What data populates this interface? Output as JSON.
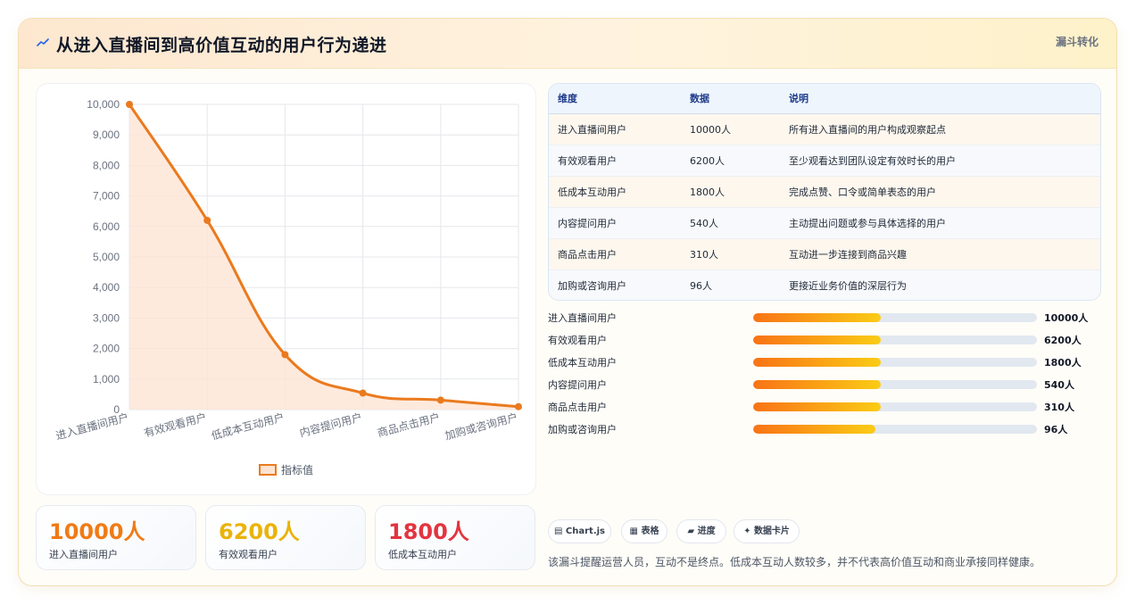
{
  "header": {
    "icon": "trend-line-icon",
    "title": "从进入直播间到高价值互动的用户行为递进",
    "tag": "漏斗转化"
  },
  "chart_data": {
    "type": "line",
    "categories": [
      "进入直播间用户",
      "有效观看用户",
      "低成本互动用户",
      "内容提问用户",
      "商品点击用户",
      "加购或咨询用户"
    ],
    "series": [
      {
        "name": "指标值",
        "values": [
          10000,
          6200,
          1800,
          540,
          310,
          96
        ]
      }
    ],
    "ylim": [
      0,
      10000
    ],
    "yticks": [
      0,
      1000,
      2000,
      3000,
      4000,
      5000,
      6000,
      7000,
      8000,
      9000,
      10000
    ],
    "ytick_labels": [
      "0",
      "1,000",
      "2,000",
      "3,000",
      "4,000",
      "5,000",
      "6,000",
      "7,000",
      "8,000",
      "9,000",
      "10,000"
    ],
    "area_fill": true,
    "grid": true,
    "legend_position": "bottom",
    "line_color": "#ea7a1e",
    "fill_color": "#fde3d2"
  },
  "stats": [
    {
      "value": "10000人",
      "label": "进入直播间用户",
      "color": "#f07b16"
    },
    {
      "value": "6200人",
      "label": "有效观看用户",
      "color": "#eab308"
    },
    {
      "value": "1800人",
      "label": "低成本互动用户",
      "color": "#e3343f"
    }
  ],
  "table": {
    "headers": [
      "维度",
      "数据",
      "说明"
    ],
    "rows": [
      [
        "进入直播间用户",
        "10000人",
        "所有进入直播间的用户构成观察起点"
      ],
      [
        "有效观看用户",
        "6200人",
        "至少观看达到团队设定有效时长的用户"
      ],
      [
        "低成本互动用户",
        "1800人",
        "完成点赞、口令或简单表态的用户"
      ],
      [
        "内容提问用户",
        "540人",
        "主动提出问题或参与具体选择的用户"
      ],
      [
        "商品点击用户",
        "310人",
        "互动进一步连接到商品兴趣"
      ],
      [
        "加购或咨询用户",
        "96人",
        "更接近业务价值的深层行为"
      ]
    ]
  },
  "progress": [
    {
      "label": "进入直播间用户",
      "value": "10000人",
      "fill": 0.45
    },
    {
      "label": "有效观看用户",
      "value": "6200人",
      "fill": 0.45
    },
    {
      "label": "低成本互动用户",
      "value": "1800人",
      "fill": 0.45
    },
    {
      "label": "内容提问用户",
      "value": "540人",
      "fill": 0.45
    },
    {
      "label": "商品点击用户",
      "value": "310人",
      "fill": 0.45
    },
    {
      "label": "加购或咨询用户",
      "value": "96人",
      "fill": 0.43
    }
  ],
  "chips": [
    {
      "icon": "▤",
      "label": "Chart.js"
    },
    {
      "icon": "▦",
      "label": "表格"
    },
    {
      "icon": "▰",
      "label": "进度"
    },
    {
      "icon": "✦",
      "label": "数据卡片"
    }
  ],
  "footer_note": "该漏斗提醒运营人员，互动不是终点。低成本互动人数较多，并不代表高价值互动和商业承接同样健康。"
}
